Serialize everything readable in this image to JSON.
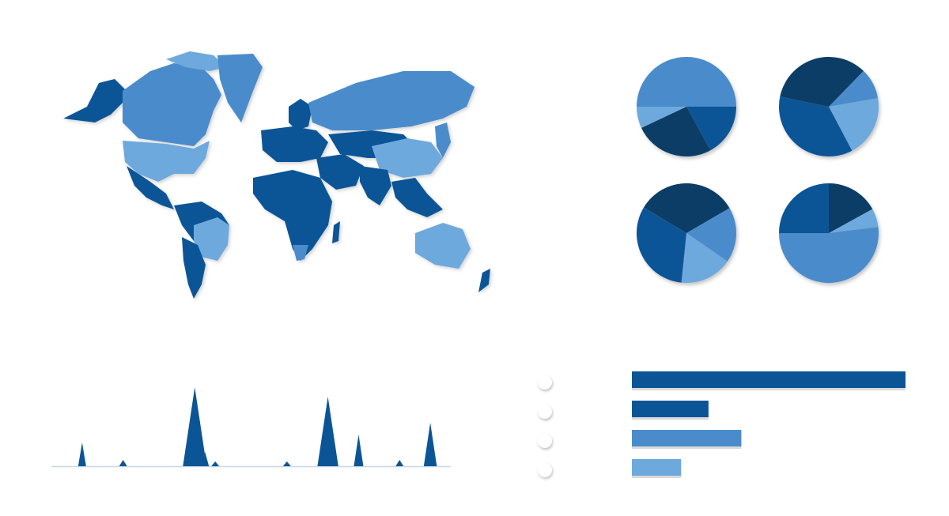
{
  "colors": {
    "darkest": "#0b3d66",
    "dark": "#0b5597",
    "medium": "#4a8ccb",
    "light": "#6ea9dd",
    "baseline": "#c8d7e8",
    "background": "#ffffff"
  },
  "world_map": {
    "description_icon": "world-map-icon"
  },
  "chart_data": [
    {
      "type": "pie",
      "slices": [
        {
          "value": 50,
          "color": "#4a8ccb"
        },
        {
          "value": 17,
          "color": "#0b5597"
        },
        {
          "value": 26,
          "color": "#0b3d66"
        },
        {
          "value": 7,
          "color": "#6ea9dd"
        }
      ]
    },
    {
      "type": "pie",
      "slices": [
        {
          "value": 10,
          "color": "#4a8ccb"
        },
        {
          "value": 20,
          "color": "#6ea9dd"
        },
        {
          "value": 36,
          "color": "#0b5597"
        },
        {
          "value": 34,
          "color": "#0b3d66"
        }
      ]
    },
    {
      "type": "pie",
      "slices": [
        {
          "value": 33,
          "color": "#0b3d66"
        },
        {
          "value": 18,
          "color": "#4a8ccb"
        },
        {
          "value": 17,
          "color": "#6ea9dd"
        },
        {
          "value": 32,
          "color": "#0b5597"
        }
      ]
    },
    {
      "type": "pie",
      "slices": [
        {
          "value": 17,
          "color": "#0b3d66"
        },
        {
          "value": 6,
          "color": "#6ea9dd"
        },
        {
          "value": 52,
          "color": "#4a8ccb"
        },
        {
          "value": 25,
          "color": "#0b5597"
        }
      ]
    },
    {
      "type": "area",
      "x": [
        1,
        2,
        3,
        4,
        5,
        6,
        7,
        8,
        9,
        10,
        11,
        12,
        13,
        14,
        15,
        16,
        17,
        18,
        19,
        20,
        21,
        22,
        23,
        24,
        25,
        26,
        27,
        28,
        29,
        30,
        31,
        32,
        33,
        34,
        35,
        36,
        37,
        38,
        39,
        40
      ],
      "values": [
        0,
        0,
        0,
        30,
        0,
        0,
        0,
        8,
        0,
        0,
        0,
        0,
        0,
        0,
        100,
        18,
        6,
        0,
        0,
        0,
        0,
        0,
        0,
        6,
        0,
        0,
        0,
        88,
        0,
        0,
        40,
        0,
        0,
        0,
        8,
        0,
        0,
        55,
        0,
        0
      ],
      "ylim": [
        0,
        105
      ]
    },
    {
      "type": "bar",
      "orientation": "horizontal",
      "values": [
        100,
        28,
        40,
        18
      ],
      "colors": [
        "#0b5597",
        "#0b5597",
        "#4a8ccb",
        "#6ea9dd"
      ],
      "xlim": [
        0,
        100
      ]
    }
  ]
}
